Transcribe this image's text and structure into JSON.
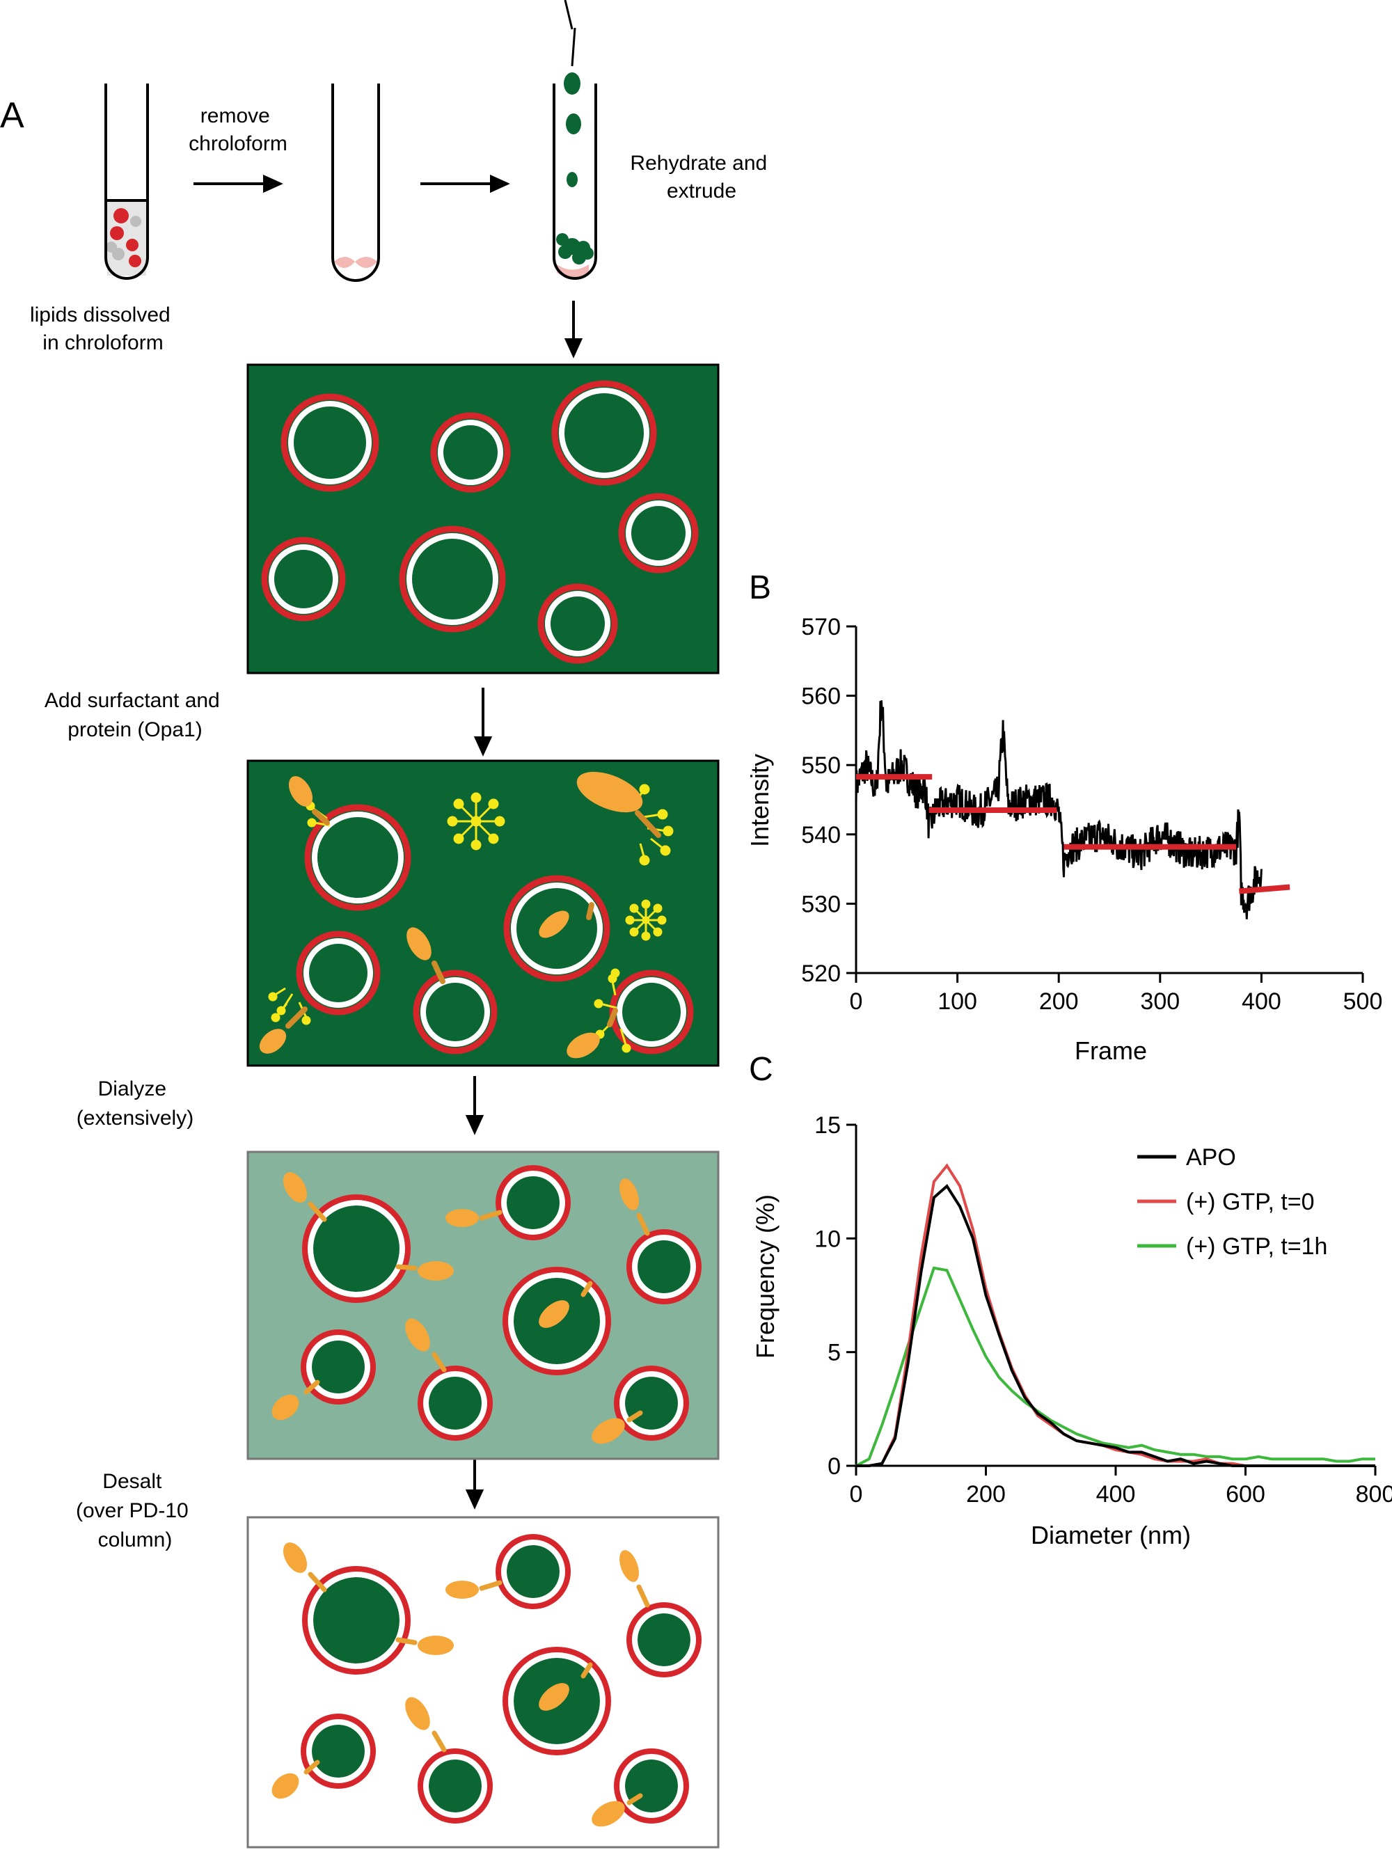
{
  "panels": {
    "a": "A",
    "b": "B",
    "c": "C"
  },
  "panel_a": {
    "tube1_caption": [
      "lipids dissolved",
      "in chroloform"
    ],
    "step1_label": [
      "remove",
      "chroloform"
    ],
    "step3_label": [
      "Rehydrate and",
      "extrude"
    ],
    "step_add": [
      "Add surfactant and",
      "protein (Opa1)"
    ],
    "step_dialyze": [
      "Dialyze",
      "(extensively)"
    ],
    "step_desalt": [
      "Desalt",
      "(over PD-10",
      "column)"
    ]
  },
  "colors": {
    "dark_green": "#0b6633",
    "light_green": "#85b39c",
    "red": "#d7262b",
    "orange": "#f5a73a",
    "yellow": "#f4e81a",
    "pink": "#f3b7b4"
  },
  "chart_data": [
    {
      "id": "B",
      "type": "line",
      "xlabel": "Frame",
      "ylabel": "Intensity",
      "xlim": [
        0,
        500
      ],
      "ylim": [
        520,
        570
      ],
      "xticks": [
        0,
        100,
        200,
        300,
        400,
        500
      ],
      "yticks": [
        520,
        530,
        540,
        550,
        560,
        570
      ],
      "trace_keypoints": [
        [
          0,
          547
        ],
        [
          10,
          550
        ],
        [
          20,
          546
        ],
        [
          25,
          560
        ],
        [
          30,
          547
        ],
        [
          45,
          550
        ],
        [
          60,
          546
        ],
        [
          68,
          547
        ],
        [
          72,
          541
        ],
        [
          80,
          544
        ],
        [
          100,
          545
        ],
        [
          120,
          543
        ],
        [
          140,
          546
        ],
        [
          145,
          555
        ],
        [
          150,
          544
        ],
        [
          170,
          545
        ],
        [
          195,
          545
        ],
        [
          200,
          543
        ],
        [
          205,
          536
        ],
        [
          210,
          538
        ],
        [
          240,
          540
        ],
        [
          280,
          537
        ],
        [
          300,
          540
        ],
        [
          330,
          537
        ],
        [
          360,
          538
        ],
        [
          375,
          538
        ],
        [
          378,
          543
        ],
        [
          380,
          532
        ],
        [
          385,
          530
        ],
        [
          390,
          532
        ],
        [
          400,
          535
        ]
      ],
      "step_fits": [
        {
          "x": [
            0,
            75
          ],
          "y": [
            548.3,
            548.3
          ]
        },
        {
          "x": [
            72,
            198
          ],
          "y": [
            543.5,
            543.5
          ]
        },
        {
          "x": [
            205,
            375
          ],
          "y": [
            538.2,
            538.2
          ]
        },
        {
          "x": [
            378,
            428
          ],
          "y": [
            531.8,
            532.4
          ]
        }
      ]
    },
    {
      "id": "C",
      "type": "line",
      "xlabel": "Diameter (nm)",
      "ylabel": "Frequency (%)",
      "xlim": [
        0,
        800
      ],
      "ylim": [
        0,
        15
      ],
      "xticks": [
        0,
        200,
        400,
        600,
        800
      ],
      "yticks": [
        0,
        5,
        10,
        15
      ],
      "legend": [
        "APO",
        "(+) GTP, t=0",
        "(+) GTP, t=1h"
      ],
      "series": [
        {
          "name": "APO",
          "color": "#000000",
          "x": [
            0,
            20,
            40,
            60,
            80,
            100,
            120,
            140,
            160,
            180,
            200,
            220,
            240,
            260,
            280,
            300,
            320,
            340,
            360,
            380,
            400,
            420,
            440,
            460,
            480,
            500,
            520,
            540,
            560,
            580,
            600,
            620,
            640,
            660,
            680,
            700,
            720,
            740,
            760,
            780,
            800
          ],
          "y": [
            0,
            0,
            0.1,
            1.2,
            4.5,
            8.5,
            11.8,
            12.3,
            11.4,
            10.0,
            7.5,
            5.8,
            4.2,
            3.0,
            2.3,
            1.9,
            1.4,
            1.1,
            1.0,
            0.9,
            0.8,
            0.6,
            0.6,
            0.4,
            0.2,
            0.3,
            0.1,
            0.2,
            0.1,
            0,
            0,
            0,
            0,
            0,
            0,
            0,
            0,
            0,
            0,
            0,
            0
          ]
        },
        {
          "name": "(+) GTP, t=0",
          "color": "#e04a4a",
          "x": [
            0,
            20,
            40,
            60,
            80,
            100,
            120,
            140,
            160,
            180,
            200,
            220,
            240,
            260,
            280,
            300,
            320,
            340,
            360,
            380,
            400,
            420,
            440,
            460,
            480,
            500,
            520,
            540,
            560,
            580,
            600,
            620,
            640,
            660,
            680,
            700,
            720,
            740,
            760,
            780,
            800
          ],
          "y": [
            0,
            0,
            0.1,
            1.3,
            5.0,
            9.2,
            12.5,
            13.2,
            12.3,
            10.4,
            7.8,
            5.9,
            4.3,
            3.1,
            2.2,
            1.8,
            1.4,
            1.1,
            1.0,
            0.9,
            0.7,
            0.6,
            0.5,
            0.3,
            0.2,
            0.2,
            0.2,
            0.3,
            0.1,
            0.1,
            0,
            0,
            0,
            0,
            0,
            0,
            0,
            0,
            0,
            0,
            0
          ]
        },
        {
          "name": "(+) GTP, t=1h",
          "color": "#3db83d",
          "x": [
            0,
            20,
            40,
            60,
            80,
            100,
            120,
            140,
            160,
            180,
            200,
            220,
            240,
            260,
            280,
            300,
            320,
            340,
            360,
            380,
            400,
            420,
            440,
            460,
            480,
            500,
            520,
            540,
            560,
            580,
            600,
            620,
            640,
            660,
            680,
            700,
            720,
            740,
            760,
            780,
            800
          ],
          "y": [
            0,
            0.3,
            1.8,
            3.5,
            5.3,
            7.0,
            8.7,
            8.6,
            7.3,
            6.0,
            4.8,
            3.9,
            3.3,
            2.8,
            2.4,
            2.0,
            1.7,
            1.4,
            1.2,
            1.0,
            0.9,
            0.8,
            0.9,
            0.7,
            0.6,
            0.5,
            0.5,
            0.4,
            0.4,
            0.3,
            0.3,
            0.4,
            0.3,
            0.3,
            0.3,
            0.3,
            0.3,
            0.2,
            0.2,
            0.3,
            0.3
          ]
        }
      ]
    }
  ]
}
